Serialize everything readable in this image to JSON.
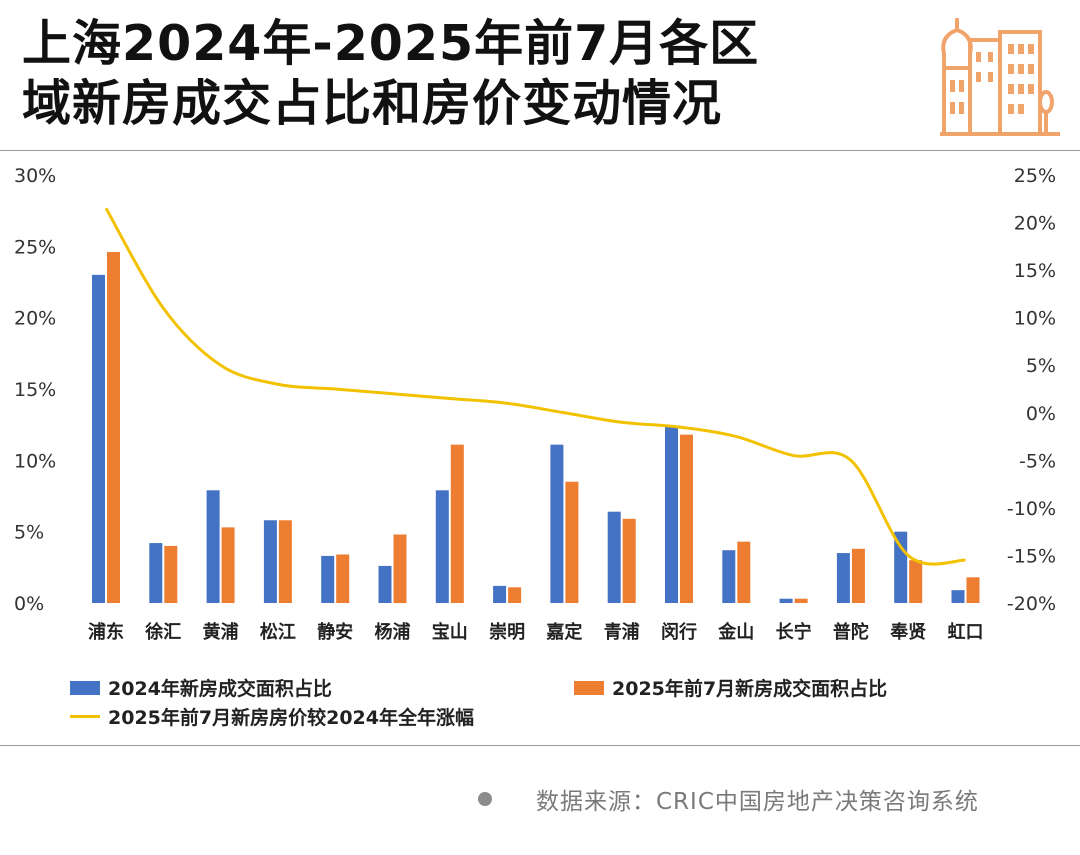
{
  "header": {
    "title_line1": "上海2024年-2025年前7月各区",
    "title_line2": "域新房成交占比和房价变动情况"
  },
  "logo": {
    "icon": "city-buildings-icon",
    "color": "#f0a36b"
  },
  "legend": {
    "bar2024": "2024年新房成交面积占比",
    "bar2025": "2025年前7月新房成交面积占比",
    "line": "2025年前7月新房房价较2024年全年涨幅"
  },
  "source": {
    "label": "数据来源：CRIC中国房地产决策咨询系统"
  },
  "colors": {
    "blue": "#4472c4",
    "orange": "#ed7d31",
    "line": "#f2c200"
  },
  "chart_data": {
    "type": "bar",
    "categories": [
      "浦东",
      "徐汇",
      "黄浦",
      "松江",
      "静安",
      "杨浦",
      "宝山",
      "崇明",
      "嘉定",
      "青浦",
      "闵行",
      "金山",
      "长宁",
      "普陀",
      "奉贤",
      "虹口"
    ],
    "series": [
      {
        "name": "2024年新房成交面积占比",
        "type": "bar",
        "axis": "left",
        "values": [
          23.0,
          4.2,
          7.9,
          5.8,
          3.3,
          2.6,
          7.9,
          1.2,
          11.1,
          6.4,
          12.4,
          3.7,
          0.3,
          3.5,
          5.0,
          0.9
        ]
      },
      {
        "name": "2025年前7月新房成交面积占比",
        "type": "bar",
        "axis": "left",
        "values": [
          24.6,
          4.0,
          5.3,
          5.8,
          3.4,
          4.8,
          11.1,
          1.1,
          8.5,
          5.9,
          11.8,
          4.3,
          0.3,
          3.8,
          3.0,
          1.8
        ]
      },
      {
        "name": "2025年前7月新房房价较2024年全年涨幅",
        "type": "line",
        "axis": "right",
        "values": [
          21.5,
          11.0,
          5.0,
          3.0,
          2.5,
          2.0,
          1.5,
          1.0,
          0.0,
          -1.0,
          -1.5,
          -2.5,
          -4.5,
          -5.0,
          -15.0,
          -15.5
        ]
      }
    ],
    "left_axis": {
      "ylim": [
        0,
        30
      ],
      "ticks": [
        "0%",
        "5%",
        "10%",
        "15%",
        "20%",
        "25%",
        "30%"
      ]
    },
    "right_axis": {
      "ylim": [
        -20,
        25
      ],
      "ticks": [
        "-20%",
        "-15%",
        "-10%",
        "-5%",
        "0%",
        "5%",
        "10%",
        "15%",
        "20%",
        "25%"
      ]
    },
    "grid": false,
    "legend_position": "bottom"
  }
}
